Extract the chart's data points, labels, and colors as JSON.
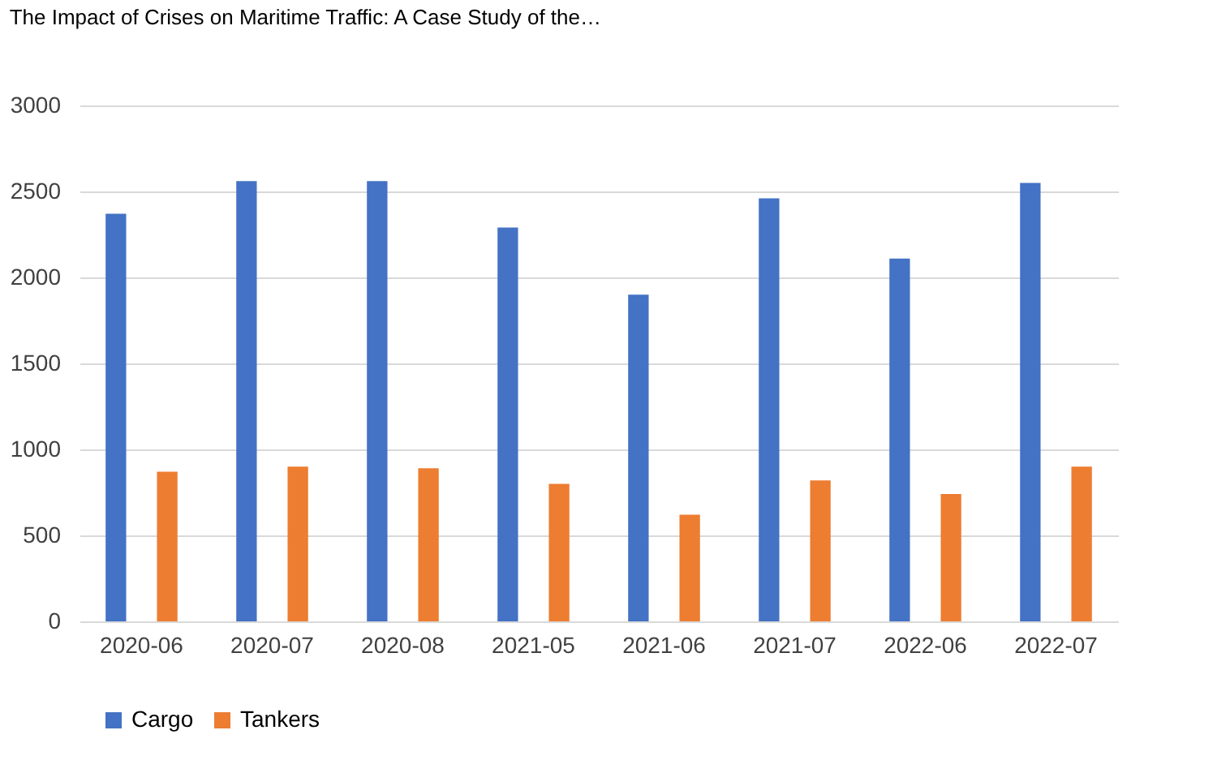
{
  "chart_data": {
    "type": "bar",
    "title": "The Impact of Crises on Maritime Traffic: A Case Study of the…",
    "categories": [
      "2020-06",
      "2020-07",
      "2020-08",
      "2021-05",
      "2021-06",
      "2021-07",
      "2022-06",
      "2022-07"
    ],
    "series": [
      {
        "name": "Cargo",
        "color": "#4472c4",
        "values": [
          2370,
          2560,
          2560,
          2290,
          1900,
          2460,
          2110,
          2550
        ]
      },
      {
        "name": "Tankers",
        "color": "#ed7d31",
        "values": [
          870,
          900,
          890,
          800,
          620,
          820,
          740,
          900
        ]
      }
    ],
    "ylim": [
      0,
      3000
    ],
    "yticks": [
      0,
      500,
      1000,
      1500,
      2000,
      2500,
      3000
    ],
    "grid": "y",
    "legend": "bottom"
  }
}
